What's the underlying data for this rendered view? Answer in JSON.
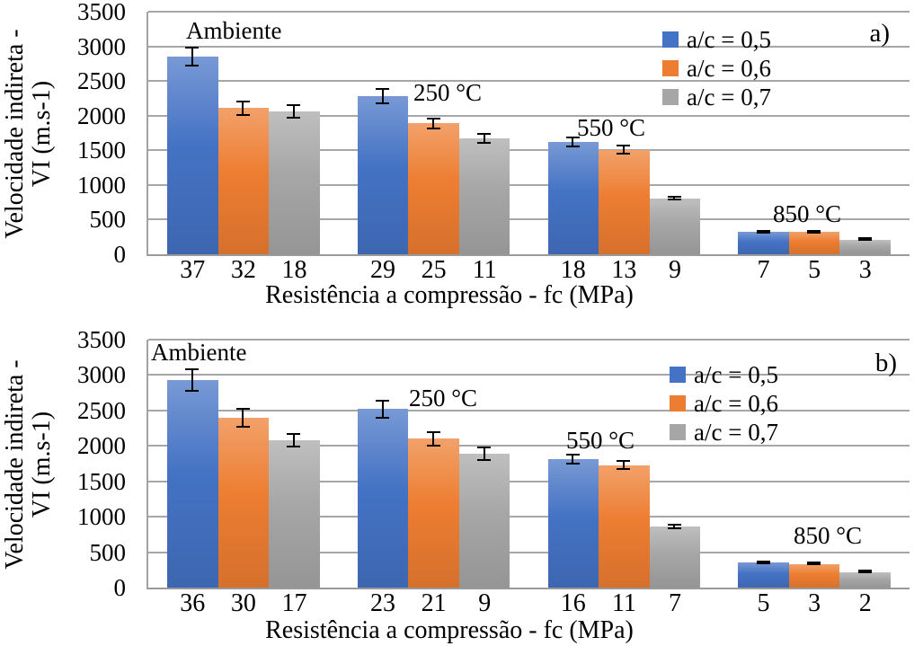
{
  "chart_data": [
    {
      "type": "bar",
      "panel_label": "a)",
      "ylabel_line1": "Velocidade indireta -",
      "ylabel_line2": "VI (m.s-1)",
      "xlabel": "Resistência a compressão - fc (MPa)",
      "ylim": [
        0,
        3500
      ],
      "yticks": [
        3500,
        3000,
        2500,
        2000,
        1500,
        1000,
        500,
        0
      ],
      "grid": true,
      "legend_position": "top-right",
      "series_names": [
        "a/c = 0,5",
        "a/c = 0,6",
        "a/c = 0,7"
      ],
      "series_colors": [
        "#4472C4",
        "#ED7D31",
        "#A6A6A6"
      ],
      "groups": [
        {
          "label": "Ambiente",
          "categories": [
            "37",
            "32",
            "18"
          ],
          "values": [
            2850,
            2110,
            2060
          ],
          "errors": [
            140,
            110,
            105
          ]
        },
        {
          "label": "250 °C",
          "categories": [
            "29",
            "25",
            "11"
          ],
          "values": [
            2280,
            1890,
            1670
          ],
          "errors": [
            115,
            85,
            80
          ]
        },
        {
          "label": "550 °C",
          "categories": [
            "18",
            "13",
            "9"
          ],
          "values": [
            1620,
            1510,
            810
          ],
          "errors": [
            80,
            75,
            35
          ]
        },
        {
          "label": "850 °C",
          "categories": [
            "7",
            "5",
            "3"
          ],
          "values": [
            320,
            320,
            210
          ],
          "errors": [
            25,
            20,
            15
          ]
        }
      ]
    },
    {
      "type": "bar",
      "panel_label": "b)",
      "ylabel_line1": "Velocidade indireta -",
      "ylabel_line2": "VI (m.s-1)",
      "xlabel": "Resistência a compressão - fc (MPa)",
      "ylim": [
        0,
        3500
      ],
      "yticks": [
        3500,
        3000,
        2500,
        2000,
        1500,
        1000,
        500,
        0
      ],
      "grid": true,
      "legend_position": "top-right",
      "series_names": [
        "a/c = 0,5",
        "a/c = 0,6",
        "a/c = 0,7"
      ],
      "series_colors": [
        "#4472C4",
        "#ED7D31",
        "#A6A6A6"
      ],
      "groups": [
        {
          "label": "Ambiente",
          "categories": [
            "36",
            "30",
            "17"
          ],
          "values": [
            2930,
            2400,
            2080
          ],
          "errors": [
            160,
            140,
            100
          ]
        },
        {
          "label": "250 °C",
          "categories": [
            "23",
            "21",
            "9"
          ],
          "values": [
            2520,
            2100,
            1890
          ],
          "errors": [
            135,
            110,
            100
          ]
        },
        {
          "label": "550 °C",
          "categories": [
            "16",
            "11",
            "7"
          ],
          "values": [
            1810,
            1730,
            860
          ],
          "errors": [
            75,
            70,
            35
          ]
        },
        {
          "label": "850 °C",
          "categories": [
            "5",
            "3",
            "2"
          ],
          "values": [
            350,
            330,
            210
          ],
          "errors": [
            20,
            15,
            12
          ]
        }
      ]
    }
  ]
}
